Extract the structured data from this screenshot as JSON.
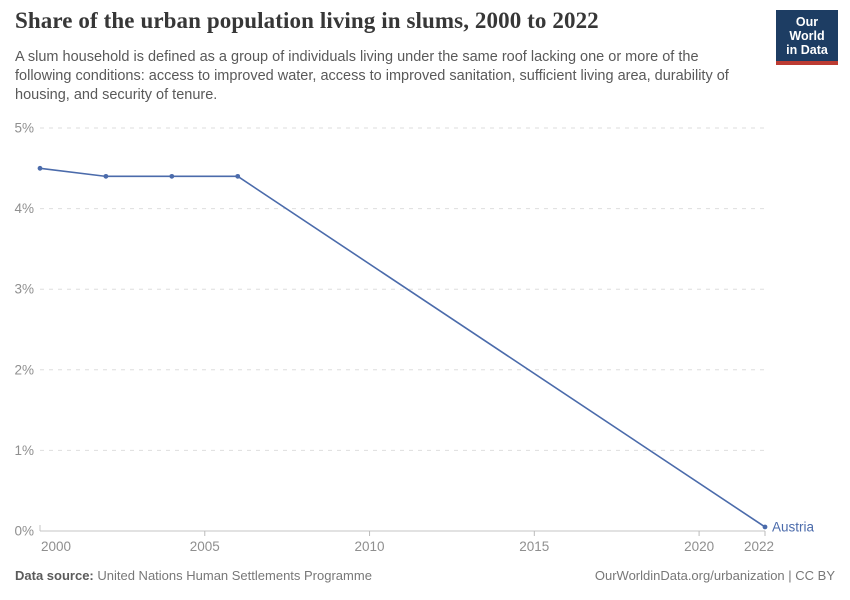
{
  "header": {
    "title": "Share of the urban population living in slums, 2000 to 2022",
    "subtitle": "A slum household is defined as a group of individuals living under the same roof lacking one or more of the following conditions: access to improved water, access to improved sanitation, sufficient living area, durability of housing, and security of tenure.",
    "logo": {
      "line1": "Our World",
      "line2": "in Data"
    }
  },
  "chart_data": {
    "type": "line",
    "title": "Share of the urban population living in slums, 2000 to 2022",
    "xlim": [
      2000,
      2022
    ],
    "ylim": [
      0,
      5
    ],
    "grid": "horizontal-dashed",
    "legend_position": "end-of-line-label",
    "x_ticks": [
      {
        "value": 2000,
        "label": "2000"
      },
      {
        "value": 2005,
        "label": "2005"
      },
      {
        "value": 2010,
        "label": "2010"
      },
      {
        "value": 2015,
        "label": "2015"
      },
      {
        "value": 2020,
        "label": "2020"
      },
      {
        "value": 2022,
        "label": "2022"
      }
    ],
    "y_ticks": [
      {
        "value": 0,
        "label": "0%"
      },
      {
        "value": 1,
        "label": "1%"
      },
      {
        "value": 2,
        "label": "2%"
      },
      {
        "value": 3,
        "label": "3%"
      },
      {
        "value": 4,
        "label": "4%"
      },
      {
        "value": 5,
        "label": "5%"
      }
    ],
    "series": [
      {
        "name": "Austria",
        "color": "#4b6bab",
        "points": [
          [
            2000,
            4.5
          ],
          [
            2002,
            4.4
          ],
          [
            2004,
            4.4
          ],
          [
            2006,
            4.4
          ],
          [
            2022,
            0.05
          ]
        ]
      }
    ]
  },
  "footer": {
    "source_label": "Data source:",
    "source_text": " United Nations Human Settlements Programme",
    "right_text": "OurWorldinData.org/urbanization | CC BY"
  },
  "colors": {
    "logo_navy": "#1d3d63",
    "logo_red": "#bc3b32",
    "line_blue": "#4b6bab",
    "axis_gray": "#c4c4c4",
    "grid_gray": "#dedede",
    "tick_label_gray": "#8f8f8f"
  }
}
